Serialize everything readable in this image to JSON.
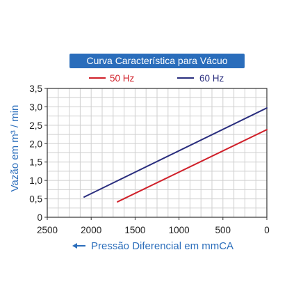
{
  "chart_data": {
    "type": "line",
    "title": "Curva Característica para Vácuo",
    "xlabel": "Pressão Diferencial em mmCA",
    "ylabel": "Vazão em m³ / min",
    "xlim": [
      2500,
      0
    ],
    "ylim": [
      0,
      3.5
    ],
    "x_direction": "reversed",
    "x_ticks": [
      "2500",
      "2000",
      "1500",
      "1000",
      "500",
      "0"
    ],
    "y_ticks": [
      "0",
      "0,5",
      "1,0",
      "1,5",
      "2,0",
      "2,5",
      "3,0",
      "3,5"
    ],
    "grid": true,
    "legend_position": "top",
    "series": [
      {
        "name": "50 Hz",
        "color": "#d0202a",
        "x": [
          1700,
          0
        ],
        "y": [
          0.42,
          2.38
        ]
      },
      {
        "name": "60 Hz",
        "color": "#2a2e7e",
        "x": [
          2080,
          0
        ],
        "y": [
          0.55,
          2.97
        ]
      }
    ]
  },
  "colors": {
    "title_bg": "#2a6dbb",
    "axis_label": "#2a6dbb",
    "grid": "#cfcfcf"
  },
  "icons": {
    "xlabel_arrow": "left-arrow-icon"
  }
}
